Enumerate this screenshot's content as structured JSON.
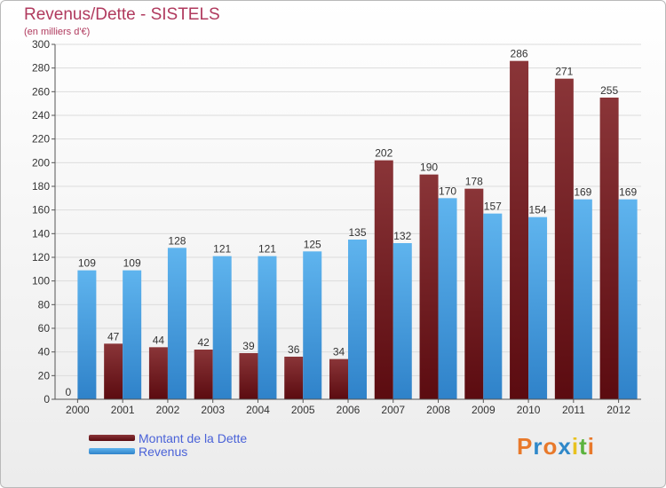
{
  "header": {
    "title": "Revenus/Dette - SISTELS",
    "subtitle": "(en milliers d'€)"
  },
  "legend": {
    "debt_label": "Montant de la Dette",
    "revenue_label": "Revenus"
  },
  "brand": {
    "text": "Proxiti",
    "colors": [
      "#e8792b",
      "#2f88c9",
      "#e8792b",
      "#2f88c9",
      "#e8c21f",
      "#5bb33e",
      "#e8792b"
    ]
  },
  "colors": {
    "debt": "#6b0f14",
    "revenue": "#4da3e2",
    "title": "#b03a5e",
    "legend_text": "#4a62d8"
  },
  "chart_data": {
    "type": "bar",
    "title": "Revenus/Dette - SISTELS",
    "subtitle": "(en milliers d'€)",
    "categories": [
      "2000",
      "2001",
      "2002",
      "2003",
      "2004",
      "2005",
      "2006",
      "2007",
      "2008",
      "2009",
      "2010",
      "2011",
      "2012"
    ],
    "series": [
      {
        "name": "Montant de la Dette",
        "values": [
          0,
          47,
          44,
          42,
          39,
          36,
          34,
          202,
          190,
          178,
          286,
          271,
          255
        ]
      },
      {
        "name": "Revenus",
        "values": [
          109,
          109,
          128,
          121,
          121,
          125,
          135,
          132,
          170,
          157,
          154,
          169,
          169
        ]
      }
    ],
    "ylim": [
      0,
      300
    ],
    "yticks": [
      0,
      20,
      40,
      60,
      80,
      100,
      120,
      140,
      160,
      180,
      200,
      220,
      240,
      260,
      280,
      300
    ],
    "grid": true,
    "legend_position": "bottom-left"
  }
}
